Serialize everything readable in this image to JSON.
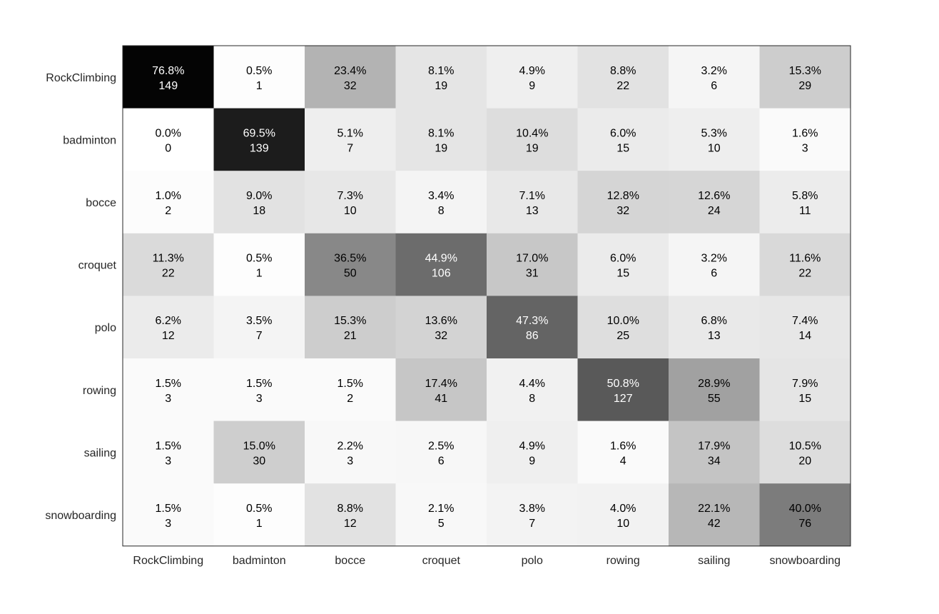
{
  "chart_data": {
    "type": "heatmap",
    "title": "",
    "xlabel": "",
    "ylabel": "",
    "grid": false,
    "colormap": "grayscale (white = low, black = high)",
    "x_categories": [
      "RockClimbing",
      "badminton",
      "bocce",
      "croquet",
      "polo",
      "rowing",
      "sailing",
      "snowboarding"
    ],
    "y_categories": [
      "RockClimbing",
      "badminton",
      "bocce",
      "croquet",
      "polo",
      "rowing",
      "sailing",
      "snowboarding"
    ],
    "percentages": [
      [
        "76.8%",
        "0.5%",
        "23.4%",
        "8.1%",
        "4.9%",
        "8.8%",
        "3.2%",
        "15.3%"
      ],
      [
        "0.0%",
        "69.5%",
        "5.1%",
        "8.1%",
        "10.4%",
        "6.0%",
        "5.3%",
        "1.6%"
      ],
      [
        "1.0%",
        "9.0%",
        "7.3%",
        "3.4%",
        "7.1%",
        "12.8%",
        "12.6%",
        "5.8%"
      ],
      [
        "11.3%",
        "0.5%",
        "36.5%",
        "44.9%",
        "17.0%",
        "6.0%",
        "3.2%",
        "11.6%"
      ],
      [
        "6.2%",
        "3.5%",
        "15.3%",
        "13.6%",
        "47.3%",
        "10.0%",
        "6.8%",
        "7.4%"
      ],
      [
        "1.5%",
        "1.5%",
        "1.5%",
        "17.4%",
        "4.4%",
        "50.8%",
        "28.9%",
        "7.9%"
      ],
      [
        "1.5%",
        "15.0%",
        "2.2%",
        "2.5%",
        "4.9%",
        "1.6%",
        "17.9%",
        "10.5%"
      ],
      [
        "1.5%",
        "0.5%",
        "8.8%",
        "2.1%",
        "3.8%",
        "4.0%",
        "22.1%",
        "40.0%"
      ]
    ],
    "counts": [
      [
        149,
        1,
        32,
        19,
        9,
        22,
        6,
        29
      ],
      [
        0,
        139,
        7,
        19,
        19,
        15,
        10,
        3
      ],
      [
        2,
        18,
        10,
        8,
        13,
        32,
        24,
        11
      ],
      [
        22,
        1,
        50,
        106,
        31,
        15,
        6,
        22
      ],
      [
        12,
        7,
        21,
        32,
        86,
        25,
        13,
        14
      ],
      [
        3,
        3,
        2,
        41,
        8,
        127,
        55,
        15
      ],
      [
        3,
        30,
        3,
        6,
        9,
        4,
        34,
        20
      ],
      [
        3,
        1,
        12,
        5,
        7,
        10,
        42,
        76
      ]
    ]
  }
}
